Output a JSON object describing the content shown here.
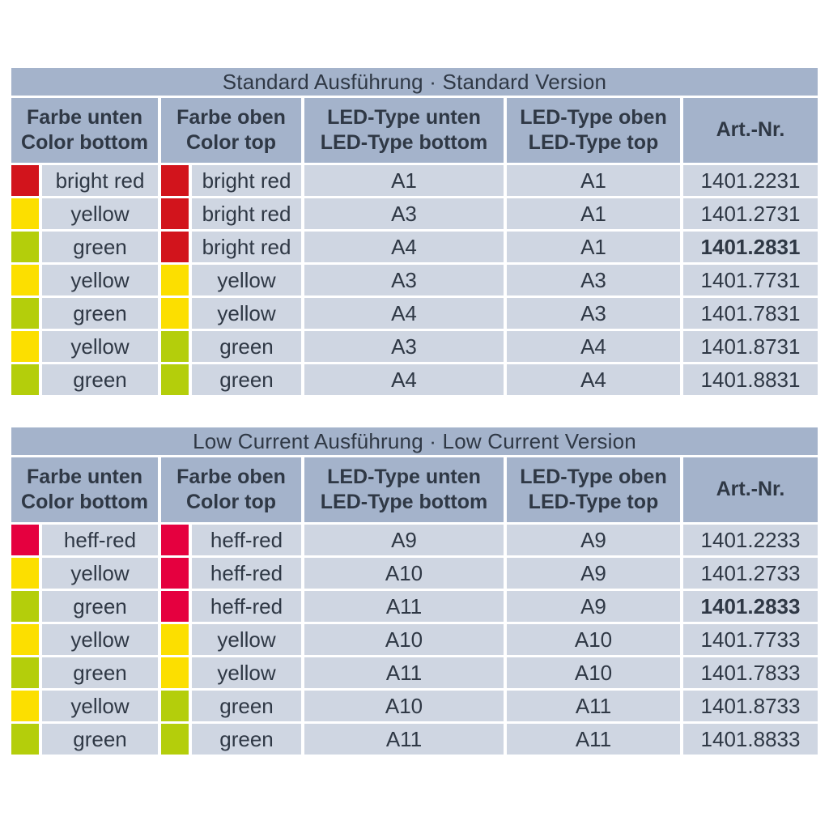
{
  "palette": {
    "band_bg": "#a4b3cb",
    "row_bg": "#cfd6e2",
    "text": "#2f3845",
    "bright_red": "#d2141c",
    "heff_red": "#e5003f",
    "yellow": "#fcdf00",
    "green": "#b4ce0b"
  },
  "tables": [
    {
      "title": "Standard Ausführung · Standard Version",
      "headers": {
        "col1_de": "Farbe unten",
        "col1_en": "Color bottom",
        "col2_de": "Farbe oben",
        "col2_en": "Color top",
        "col3_de": "LED-Type unten",
        "col3_en": "LED-Type bottom",
        "col4_de": "LED-Type oben",
        "col4_en": "LED-Type top",
        "col5": "Art.-Nr."
      },
      "rows": [
        {
          "color_bottom": {
            "label": "bright red",
            "hex": "#d2141c"
          },
          "color_top": {
            "label": "bright red",
            "hex": "#d2141c"
          },
          "led_bottom": "A1",
          "led_top": "A1",
          "art_nr": "1401.2231",
          "art_weight": "normal"
        },
        {
          "color_bottom": {
            "label": "yellow",
            "hex": "#fcdf00"
          },
          "color_top": {
            "label": "bright red",
            "hex": "#d2141c"
          },
          "led_bottom": "A3",
          "led_top": "A1",
          "art_nr": "1401.2731",
          "art_weight": "normal"
        },
        {
          "color_bottom": {
            "label": "green",
            "hex": "#b4ce0b"
          },
          "color_top": {
            "label": "bright red",
            "hex": "#d2141c"
          },
          "led_bottom": "A4",
          "led_top": "A1",
          "art_nr": "1401.2831",
          "art_weight": "bold"
        },
        {
          "color_bottom": {
            "label": "yellow",
            "hex": "#fcdf00"
          },
          "color_top": {
            "label": "yellow",
            "hex": "#fcdf00"
          },
          "led_bottom": "A3",
          "led_top": "A3",
          "art_nr": "1401.7731",
          "art_weight": "normal"
        },
        {
          "color_bottom": {
            "label": "green",
            "hex": "#b4ce0b"
          },
          "color_top": {
            "label": "yellow",
            "hex": "#fcdf00"
          },
          "led_bottom": "A4",
          "led_top": "A3",
          "art_nr": "1401.7831",
          "art_weight": "normal"
        },
        {
          "color_bottom": {
            "label": "yellow",
            "hex": "#fcdf00"
          },
          "color_top": {
            "label": "green",
            "hex": "#b4ce0b"
          },
          "led_bottom": "A3",
          "led_top": "A4",
          "art_nr": "1401.8731",
          "art_weight": "normal"
        },
        {
          "color_bottom": {
            "label": "green",
            "hex": "#b4ce0b"
          },
          "color_top": {
            "label": "green",
            "hex": "#b4ce0b"
          },
          "led_bottom": "A4",
          "led_top": "A4",
          "art_nr": "1401.8831",
          "art_weight": "normal"
        }
      ]
    },
    {
      "title": "Low Current Ausführung · Low Current Version",
      "headers": {
        "col1_de": "Farbe unten",
        "col1_en": "Color bottom",
        "col2_de": "Farbe oben",
        "col2_en": "Color top",
        "col3_de": "LED-Type unten",
        "col3_en": "LED-Type bottom",
        "col4_de": "LED-Type oben",
        "col4_en": "LED-Type top",
        "col5": "Art.-Nr."
      },
      "rows": [
        {
          "color_bottom": {
            "label": "heff-red",
            "hex": "#e5003f"
          },
          "color_top": {
            "label": "heff-red",
            "hex": "#e5003f"
          },
          "led_bottom": "A9",
          "led_top": "A9",
          "art_nr": "1401.2233",
          "art_weight": "normal"
        },
        {
          "color_bottom": {
            "label": "yellow",
            "hex": "#fcdf00"
          },
          "color_top": {
            "label": "heff-red",
            "hex": "#e5003f"
          },
          "led_bottom": "A10",
          "led_top": "A9",
          "art_nr": "1401.2733",
          "art_weight": "normal"
        },
        {
          "color_bottom": {
            "label": "green",
            "hex": "#b4ce0b"
          },
          "color_top": {
            "label": "heff-red",
            "hex": "#e5003f"
          },
          "led_bottom": "A11",
          "led_top": "A9",
          "art_nr": "1401.2833",
          "art_weight": "bold"
        },
        {
          "color_bottom": {
            "label": "yellow",
            "hex": "#fcdf00"
          },
          "color_top": {
            "label": "yellow",
            "hex": "#fcdf00"
          },
          "led_bottom": "A10",
          "led_top": "A10",
          "art_nr": "1401.7733",
          "art_weight": "normal"
        },
        {
          "color_bottom": {
            "label": "green",
            "hex": "#b4ce0b"
          },
          "color_top": {
            "label": "yellow",
            "hex": "#fcdf00"
          },
          "led_bottom": "A11",
          "led_top": "A10",
          "art_nr": "1401.7833",
          "art_weight": "normal"
        },
        {
          "color_bottom": {
            "label": "yellow",
            "hex": "#fcdf00"
          },
          "color_top": {
            "label": "green",
            "hex": "#b4ce0b"
          },
          "led_bottom": "A10",
          "led_top": "A11",
          "art_nr": "1401.8733",
          "art_weight": "normal"
        },
        {
          "color_bottom": {
            "label": "green",
            "hex": "#b4ce0b"
          },
          "color_top": {
            "label": "green",
            "hex": "#b4ce0b"
          },
          "led_bottom": "A11",
          "led_top": "A11",
          "art_nr": "1401.8833",
          "art_weight": "normal"
        }
      ]
    }
  ]
}
